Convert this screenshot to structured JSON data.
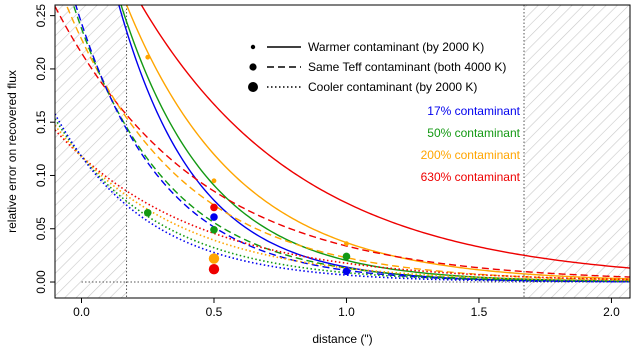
{
  "chart_data": {
    "type": "line",
    "xlabel": "distance (\")",
    "ylabel": "relative error on recovered flux",
    "xlim": [
      -0.1,
      2.07
    ],
    "ylim": [
      -0.015,
      0.26
    ],
    "xticks": [
      0.0,
      0.5,
      1.0,
      1.5,
      2.0
    ],
    "xtick_labels": [
      "0.0",
      "0.5",
      "1.0",
      "1.5",
      "2.0"
    ],
    "yticks": [
      0.0,
      0.05,
      0.1,
      0.15,
      0.2,
      0.25
    ],
    "ytick_labels": [
      "0.00",
      "0.05",
      "0.10",
      "0.15",
      "0.20",
      "0.25"
    ],
    "hatched_regions_x": [
      [
        -0.1,
        0.17
      ],
      [
        1.67,
        2.07
      ]
    ],
    "reference_lines": {
      "vertical_x": [
        0.17,
        1.67
      ],
      "horizontal_y": [
        0.0
      ]
    },
    "style_legend": [
      {
        "label": "Warmer contaminant (by 2000 K)",
        "line": "solid",
        "marker": "small"
      },
      {
        "label": "Same Teff contaminant (both 4000 K)",
        "line": "dashed",
        "marker": "medium"
      },
      {
        "label": "Cooler contaminant (by 2000 K)",
        "line": "dotted",
        "marker": "large"
      }
    ],
    "color_legend": [
      {
        "label": "17% contaminant",
        "color": "#0000ee"
      },
      {
        "label": "50% contaminant",
        "color": "#139913"
      },
      {
        "label": "200% contaminant",
        "color": "#ffa500"
      },
      {
        "label": "630% contaminant",
        "color": "#ee0000"
      }
    ],
    "series": [
      {
        "contaminant": "630%",
        "type": "warmer",
        "color": "#ee0000",
        "curve": {
          "a": 0.375,
          "k": 1.62
        }
      },
      {
        "contaminant": "200%",
        "type": "warmer",
        "color": "#ffa500",
        "curve": {
          "a": 0.388,
          "k": 2.35
        }
      },
      {
        "contaminant": "50%",
        "type": "warmer",
        "color": "#139913",
        "curve": {
          "a": 0.407,
          "k": 3.0
        }
      },
      {
        "contaminant": "17%",
        "type": "warmer",
        "color": "#0000ee",
        "curve": {
          "a": 0.42,
          "k": 3.4
        }
      },
      {
        "contaminant": "630%",
        "type": "same",
        "color": "#ee0000",
        "curve": {
          "a": 0.215,
          "k": 1.85
        }
      },
      {
        "contaminant": "200%",
        "type": "same",
        "color": "#ffa500",
        "curve": {
          "a": 0.228,
          "k": 2.3
        }
      },
      {
        "contaminant": "50%",
        "type": "same",
        "color": "#139913",
        "curve": {
          "a": 0.238,
          "k": 2.9
        }
      },
      {
        "contaminant": "17%",
        "type": "same",
        "color": "#0000ee",
        "curve": {
          "a": 0.243,
          "k": 3.1
        }
      },
      {
        "contaminant": "630%",
        "type": "cooler",
        "color": "#ee0000",
        "curve": {
          "a": 0.118,
          "k": 1.9
        }
      },
      {
        "contaminant": "200%",
        "type": "cooler",
        "color": "#ffa500",
        "curve": {
          "a": 0.118,
          "k": 2.2
        }
      },
      {
        "contaminant": "50%",
        "type": "cooler",
        "color": "#139913",
        "curve": {
          "a": 0.118,
          "k": 2.6
        }
      },
      {
        "contaminant": "17%",
        "type": "cooler",
        "color": "#0000ee",
        "curve": {
          "a": 0.118,
          "k": 2.9
        }
      }
    ],
    "points": [
      {
        "x": 0.25,
        "y": 0.211,
        "color": "#ffa500",
        "type": "warmer"
      },
      {
        "x": 0.5,
        "y": 0.095,
        "color": "#ffa500",
        "type": "warmer"
      },
      {
        "x": 1.0,
        "y": 0.036,
        "color": "#ffa500",
        "type": "warmer"
      },
      {
        "x": 0.5,
        "y": 0.062,
        "color": "#ee0000",
        "type": "warmer"
      },
      {
        "x": 0.25,
        "y": 0.065,
        "color": "#139913",
        "type": "same"
      },
      {
        "x": 0.5,
        "y": 0.07,
        "color": "#ee0000",
        "type": "same"
      },
      {
        "x": 0.5,
        "y": 0.061,
        "color": "#0000ee",
        "type": "same"
      },
      {
        "x": 0.5,
        "y": 0.049,
        "color": "#139913",
        "type": "same"
      },
      {
        "x": 1.0,
        "y": 0.024,
        "color": "#139913",
        "type": "same"
      },
      {
        "x": 1.0,
        "y": 0.01,
        "color": "#0000ee",
        "type": "same"
      },
      {
        "x": 0.5,
        "y": 0.022,
        "color": "#ffa500",
        "type": "cooler"
      },
      {
        "x": 0.5,
        "y": 0.012,
        "color": "#ee0000",
        "type": "cooler"
      }
    ]
  }
}
